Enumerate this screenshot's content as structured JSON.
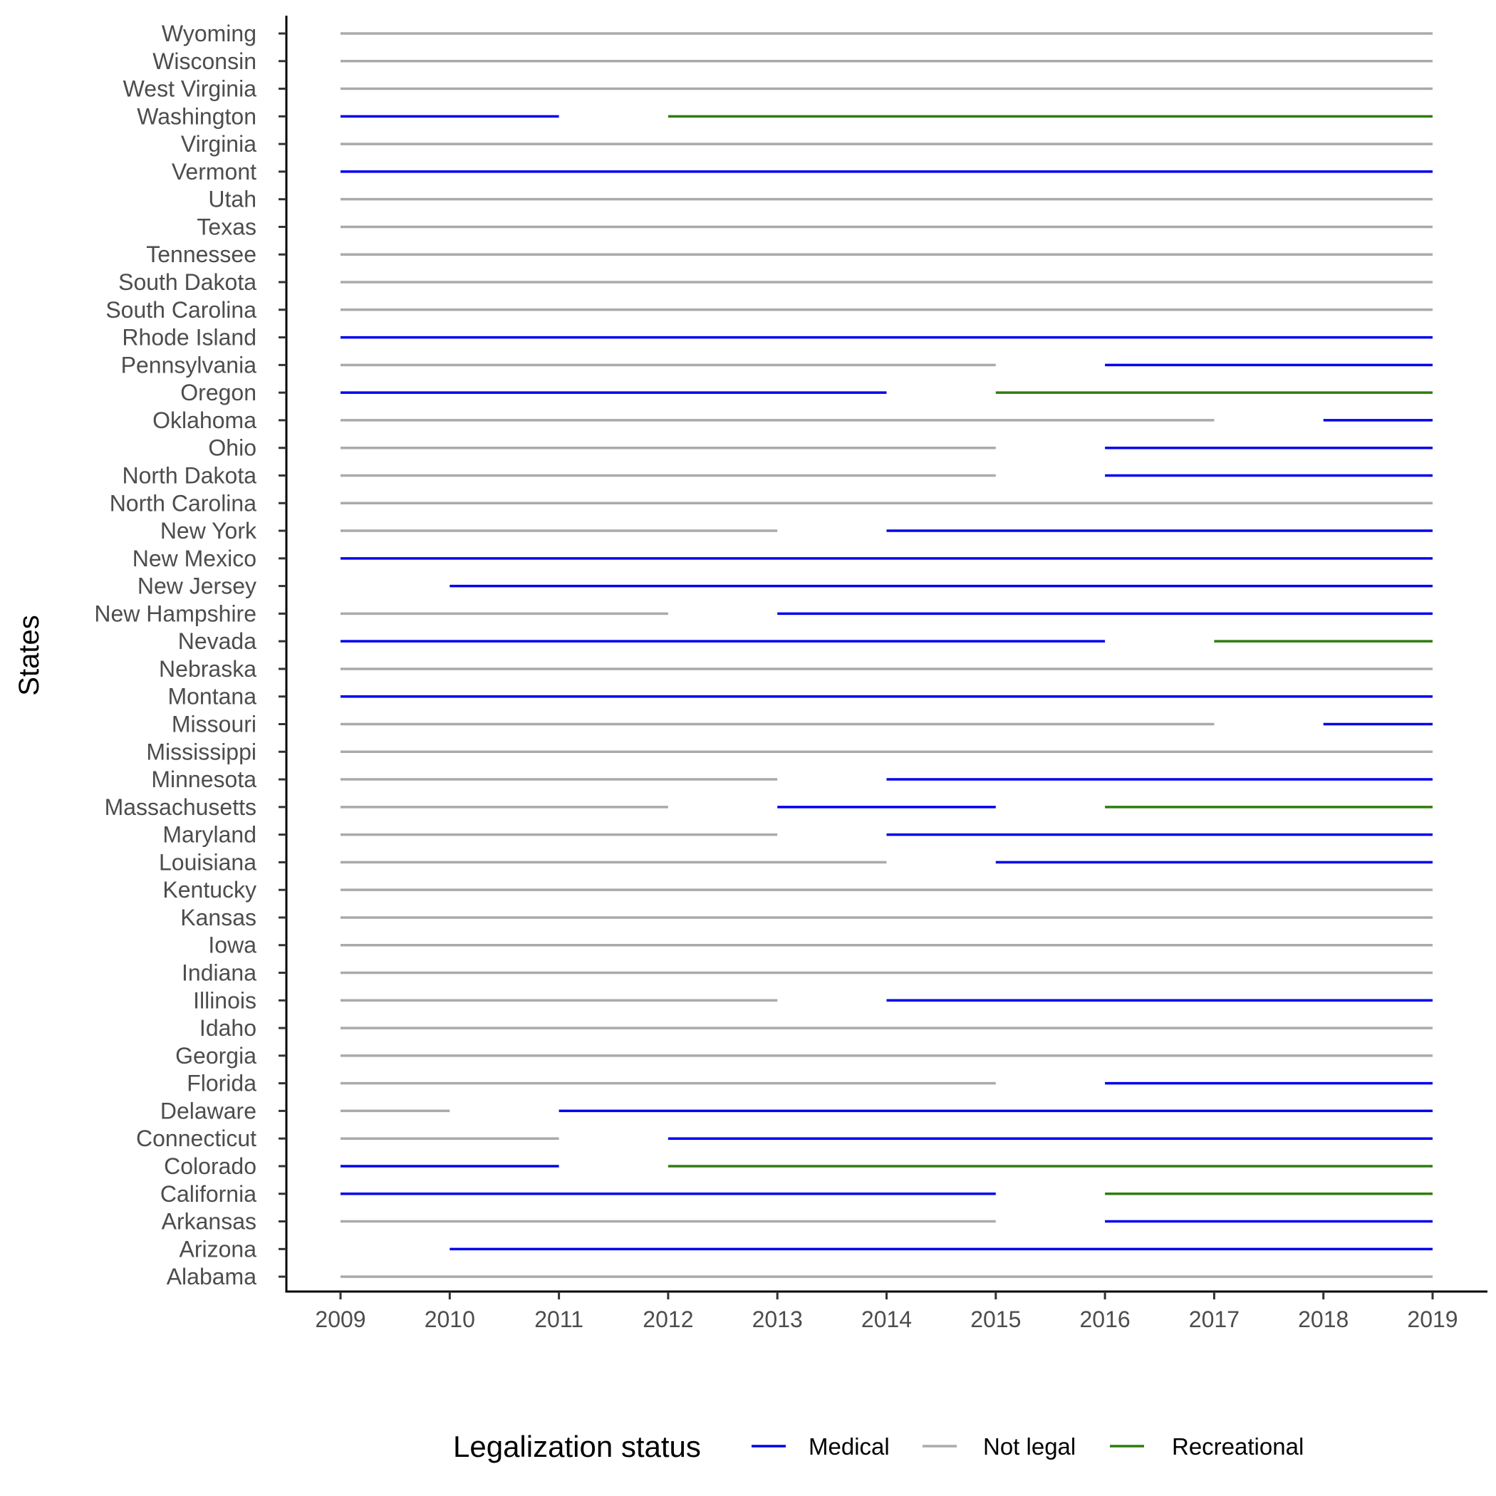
{
  "chart_data": {
    "type": "line",
    "title": "",
    "xlabel": "",
    "ylabel": "States",
    "xlim": [
      2009,
      2019
    ],
    "x_ticks": [
      "2009",
      "2010",
      "2011",
      "2012",
      "2013",
      "2014",
      "2015",
      "2016",
      "2017",
      "2018",
      "2019"
    ],
    "grid": false,
    "legend": {
      "title": "Legalization status",
      "position": "bottom",
      "entries": [
        {
          "label": "Medical",
          "color": "#0000ee"
        },
        {
          "label": "Not legal",
          "color": "#aaaaaa"
        },
        {
          "label": "Recreational",
          "color": "#2e7d0f"
        }
      ]
    },
    "series": [
      {
        "state": "Alabama",
        "segments": [
          {
            "status": "Not legal",
            "start": 2009,
            "end": 2019
          }
        ]
      },
      {
        "state": "Arizona",
        "segments": [
          {
            "status": "Medical",
            "start": 2010,
            "end": 2019
          }
        ]
      },
      {
        "state": "Arkansas",
        "segments": [
          {
            "status": "Not legal",
            "start": 2009,
            "end": 2015
          },
          {
            "status": "Medical",
            "start": 2016,
            "end": 2019
          }
        ]
      },
      {
        "state": "California",
        "segments": [
          {
            "status": "Medical",
            "start": 2009,
            "end": 2015
          },
          {
            "status": "Recreational",
            "start": 2016,
            "end": 2019
          }
        ]
      },
      {
        "state": "Colorado",
        "segments": [
          {
            "status": "Medical",
            "start": 2009,
            "end": 2011
          },
          {
            "status": "Recreational",
            "start": 2012,
            "end": 2019
          }
        ]
      },
      {
        "state": "Connecticut",
        "segments": [
          {
            "status": "Not legal",
            "start": 2009,
            "end": 2011
          },
          {
            "status": "Medical",
            "start": 2012,
            "end": 2019
          }
        ]
      },
      {
        "state": "Delaware",
        "segments": [
          {
            "status": "Not legal",
            "start": 2009,
            "end": 2010
          },
          {
            "status": "Medical",
            "start": 2011,
            "end": 2019
          }
        ]
      },
      {
        "state": "Florida",
        "segments": [
          {
            "status": "Not legal",
            "start": 2009,
            "end": 2015
          },
          {
            "status": "Medical",
            "start": 2016,
            "end": 2019
          }
        ]
      },
      {
        "state": "Georgia",
        "segments": [
          {
            "status": "Not legal",
            "start": 2009,
            "end": 2019
          }
        ]
      },
      {
        "state": "Idaho",
        "segments": [
          {
            "status": "Not legal",
            "start": 2009,
            "end": 2019
          }
        ]
      },
      {
        "state": "Illinois",
        "segments": [
          {
            "status": "Not legal",
            "start": 2009,
            "end": 2013
          },
          {
            "status": "Medical",
            "start": 2014,
            "end": 2019
          }
        ]
      },
      {
        "state": "Indiana",
        "segments": [
          {
            "status": "Not legal",
            "start": 2009,
            "end": 2019
          }
        ]
      },
      {
        "state": "Iowa",
        "segments": [
          {
            "status": "Not legal",
            "start": 2009,
            "end": 2019
          }
        ]
      },
      {
        "state": "Kansas",
        "segments": [
          {
            "status": "Not legal",
            "start": 2009,
            "end": 2019
          }
        ]
      },
      {
        "state": "Kentucky",
        "segments": [
          {
            "status": "Not legal",
            "start": 2009,
            "end": 2019
          }
        ]
      },
      {
        "state": "Louisiana",
        "segments": [
          {
            "status": "Not legal",
            "start": 2009,
            "end": 2014
          },
          {
            "status": "Medical",
            "start": 2015,
            "end": 2019
          }
        ]
      },
      {
        "state": "Maryland",
        "segments": [
          {
            "status": "Not legal",
            "start": 2009,
            "end": 2013
          },
          {
            "status": "Medical",
            "start": 2014,
            "end": 2019
          }
        ]
      },
      {
        "state": "Massachusetts",
        "segments": [
          {
            "status": "Not legal",
            "start": 2009,
            "end": 2012
          },
          {
            "status": "Medical",
            "start": 2013,
            "end": 2015
          },
          {
            "status": "Recreational",
            "start": 2016,
            "end": 2019
          }
        ]
      },
      {
        "state": "Minnesota",
        "segments": [
          {
            "status": "Not legal",
            "start": 2009,
            "end": 2013
          },
          {
            "status": "Medical",
            "start": 2014,
            "end": 2019
          }
        ]
      },
      {
        "state": "Mississippi",
        "segments": [
          {
            "status": "Not legal",
            "start": 2009,
            "end": 2019
          }
        ]
      },
      {
        "state": "Missouri",
        "segments": [
          {
            "status": "Not legal",
            "start": 2009,
            "end": 2017
          },
          {
            "status": "Medical",
            "start": 2018,
            "end": 2019
          }
        ]
      },
      {
        "state": "Montana",
        "segments": [
          {
            "status": "Medical",
            "start": 2009,
            "end": 2019
          }
        ]
      },
      {
        "state": "Nebraska",
        "segments": [
          {
            "status": "Not legal",
            "start": 2009,
            "end": 2019
          }
        ]
      },
      {
        "state": "Nevada",
        "segments": [
          {
            "status": "Medical",
            "start": 2009,
            "end": 2016
          },
          {
            "status": "Recreational",
            "start": 2017,
            "end": 2019
          }
        ]
      },
      {
        "state": "New Hampshire",
        "segments": [
          {
            "status": "Not legal",
            "start": 2009,
            "end": 2012
          },
          {
            "status": "Medical",
            "start": 2013,
            "end": 2019
          }
        ]
      },
      {
        "state": "New Jersey",
        "segments": [
          {
            "status": "Medical",
            "start": 2010,
            "end": 2019
          }
        ]
      },
      {
        "state": "New Mexico",
        "segments": [
          {
            "status": "Medical",
            "start": 2009,
            "end": 2019
          }
        ]
      },
      {
        "state": "New York",
        "segments": [
          {
            "status": "Not legal",
            "start": 2009,
            "end": 2013
          },
          {
            "status": "Medical",
            "start": 2014,
            "end": 2019
          }
        ]
      },
      {
        "state": "North Carolina",
        "segments": [
          {
            "status": "Not legal",
            "start": 2009,
            "end": 2019
          }
        ]
      },
      {
        "state": "North Dakota",
        "segments": [
          {
            "status": "Not legal",
            "start": 2009,
            "end": 2015
          },
          {
            "status": "Medical",
            "start": 2016,
            "end": 2019
          }
        ]
      },
      {
        "state": "Ohio",
        "segments": [
          {
            "status": "Not legal",
            "start": 2009,
            "end": 2015
          },
          {
            "status": "Medical",
            "start": 2016,
            "end": 2019
          }
        ]
      },
      {
        "state": "Oklahoma",
        "segments": [
          {
            "status": "Not legal",
            "start": 2009,
            "end": 2017
          },
          {
            "status": "Medical",
            "start": 2018,
            "end": 2019
          }
        ]
      },
      {
        "state": "Oregon",
        "segments": [
          {
            "status": "Medical",
            "start": 2009,
            "end": 2014
          },
          {
            "status": "Recreational",
            "start": 2015,
            "end": 2019
          }
        ]
      },
      {
        "state": "Pennsylvania",
        "segments": [
          {
            "status": "Not legal",
            "start": 2009,
            "end": 2015
          },
          {
            "status": "Medical",
            "start": 2016,
            "end": 2019
          }
        ]
      },
      {
        "state": "Rhode Island",
        "segments": [
          {
            "status": "Medical",
            "start": 2009,
            "end": 2019
          }
        ]
      },
      {
        "state": "South Carolina",
        "segments": [
          {
            "status": "Not legal",
            "start": 2009,
            "end": 2019
          }
        ]
      },
      {
        "state": "South Dakota",
        "segments": [
          {
            "status": "Not legal",
            "start": 2009,
            "end": 2019
          }
        ]
      },
      {
        "state": "Tennessee",
        "segments": [
          {
            "status": "Not legal",
            "start": 2009,
            "end": 2019
          }
        ]
      },
      {
        "state": "Texas",
        "segments": [
          {
            "status": "Not legal",
            "start": 2009,
            "end": 2019
          }
        ]
      },
      {
        "state": "Utah",
        "segments": [
          {
            "status": "Not legal",
            "start": 2009,
            "end": 2019
          }
        ]
      },
      {
        "state": "Vermont",
        "segments": [
          {
            "status": "Medical",
            "start": 2009,
            "end": 2019
          }
        ]
      },
      {
        "state": "Virginia",
        "segments": [
          {
            "status": "Not legal",
            "start": 2009,
            "end": 2019
          }
        ]
      },
      {
        "state": "Washington",
        "segments": [
          {
            "status": "Medical",
            "start": 2009,
            "end": 2011
          },
          {
            "status": "Recreational",
            "start": 2012,
            "end": 2019
          }
        ]
      },
      {
        "state": "West Virginia",
        "segments": [
          {
            "status": "Not legal",
            "start": 2009,
            "end": 2019
          }
        ]
      },
      {
        "state": "Wisconsin",
        "segments": [
          {
            "status": "Not legal",
            "start": 2009,
            "end": 2019
          }
        ]
      },
      {
        "state": "Wyoming",
        "segments": [
          {
            "status": "Not legal",
            "start": 2009,
            "end": 2019
          }
        ]
      }
    ]
  }
}
